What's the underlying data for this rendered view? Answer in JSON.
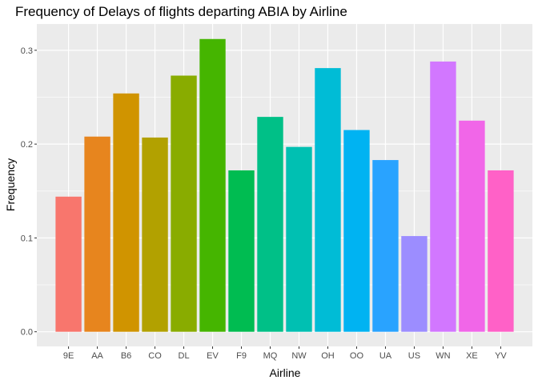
{
  "chart_data": {
    "type": "bar",
    "title": "Frequency of Delays of flights departing ABIA by Airline",
    "xlabel": "Airline",
    "ylabel": "Frequency",
    "categories": [
      "9E",
      "AA",
      "B6",
      "CO",
      "DL",
      "EV",
      "F9",
      "MQ",
      "NW",
      "OH",
      "OO",
      "UA",
      "US",
      "WN",
      "XE",
      "YV"
    ],
    "values": [
      0.144,
      0.208,
      0.254,
      0.207,
      0.273,
      0.312,
      0.172,
      0.229,
      0.197,
      0.281,
      0.215,
      0.183,
      0.102,
      0.288,
      0.225,
      0.172
    ],
    "colors": [
      "#F8766D",
      "#E7851E",
      "#D09400",
      "#B2A100",
      "#89AC00",
      "#45B500",
      "#00BC51",
      "#00C087",
      "#00C0B2",
      "#00BCD6",
      "#00B3F2",
      "#29A3FF",
      "#9C8DFF",
      "#D277FF",
      "#F166E8",
      "#FF61C7"
    ],
    "yticks": [
      0.0,
      0.1,
      0.2,
      0.3
    ],
    "ytick_labels": [
      "0.0",
      "0.1",
      "0.2",
      "0.3"
    ],
    "ylim": [
      -0.0156,
      0.328
    ],
    "grid": true,
    "legend": "none",
    "panel_background": "#EBEBEB",
    "grid_color": "#FFFFFF"
  }
}
